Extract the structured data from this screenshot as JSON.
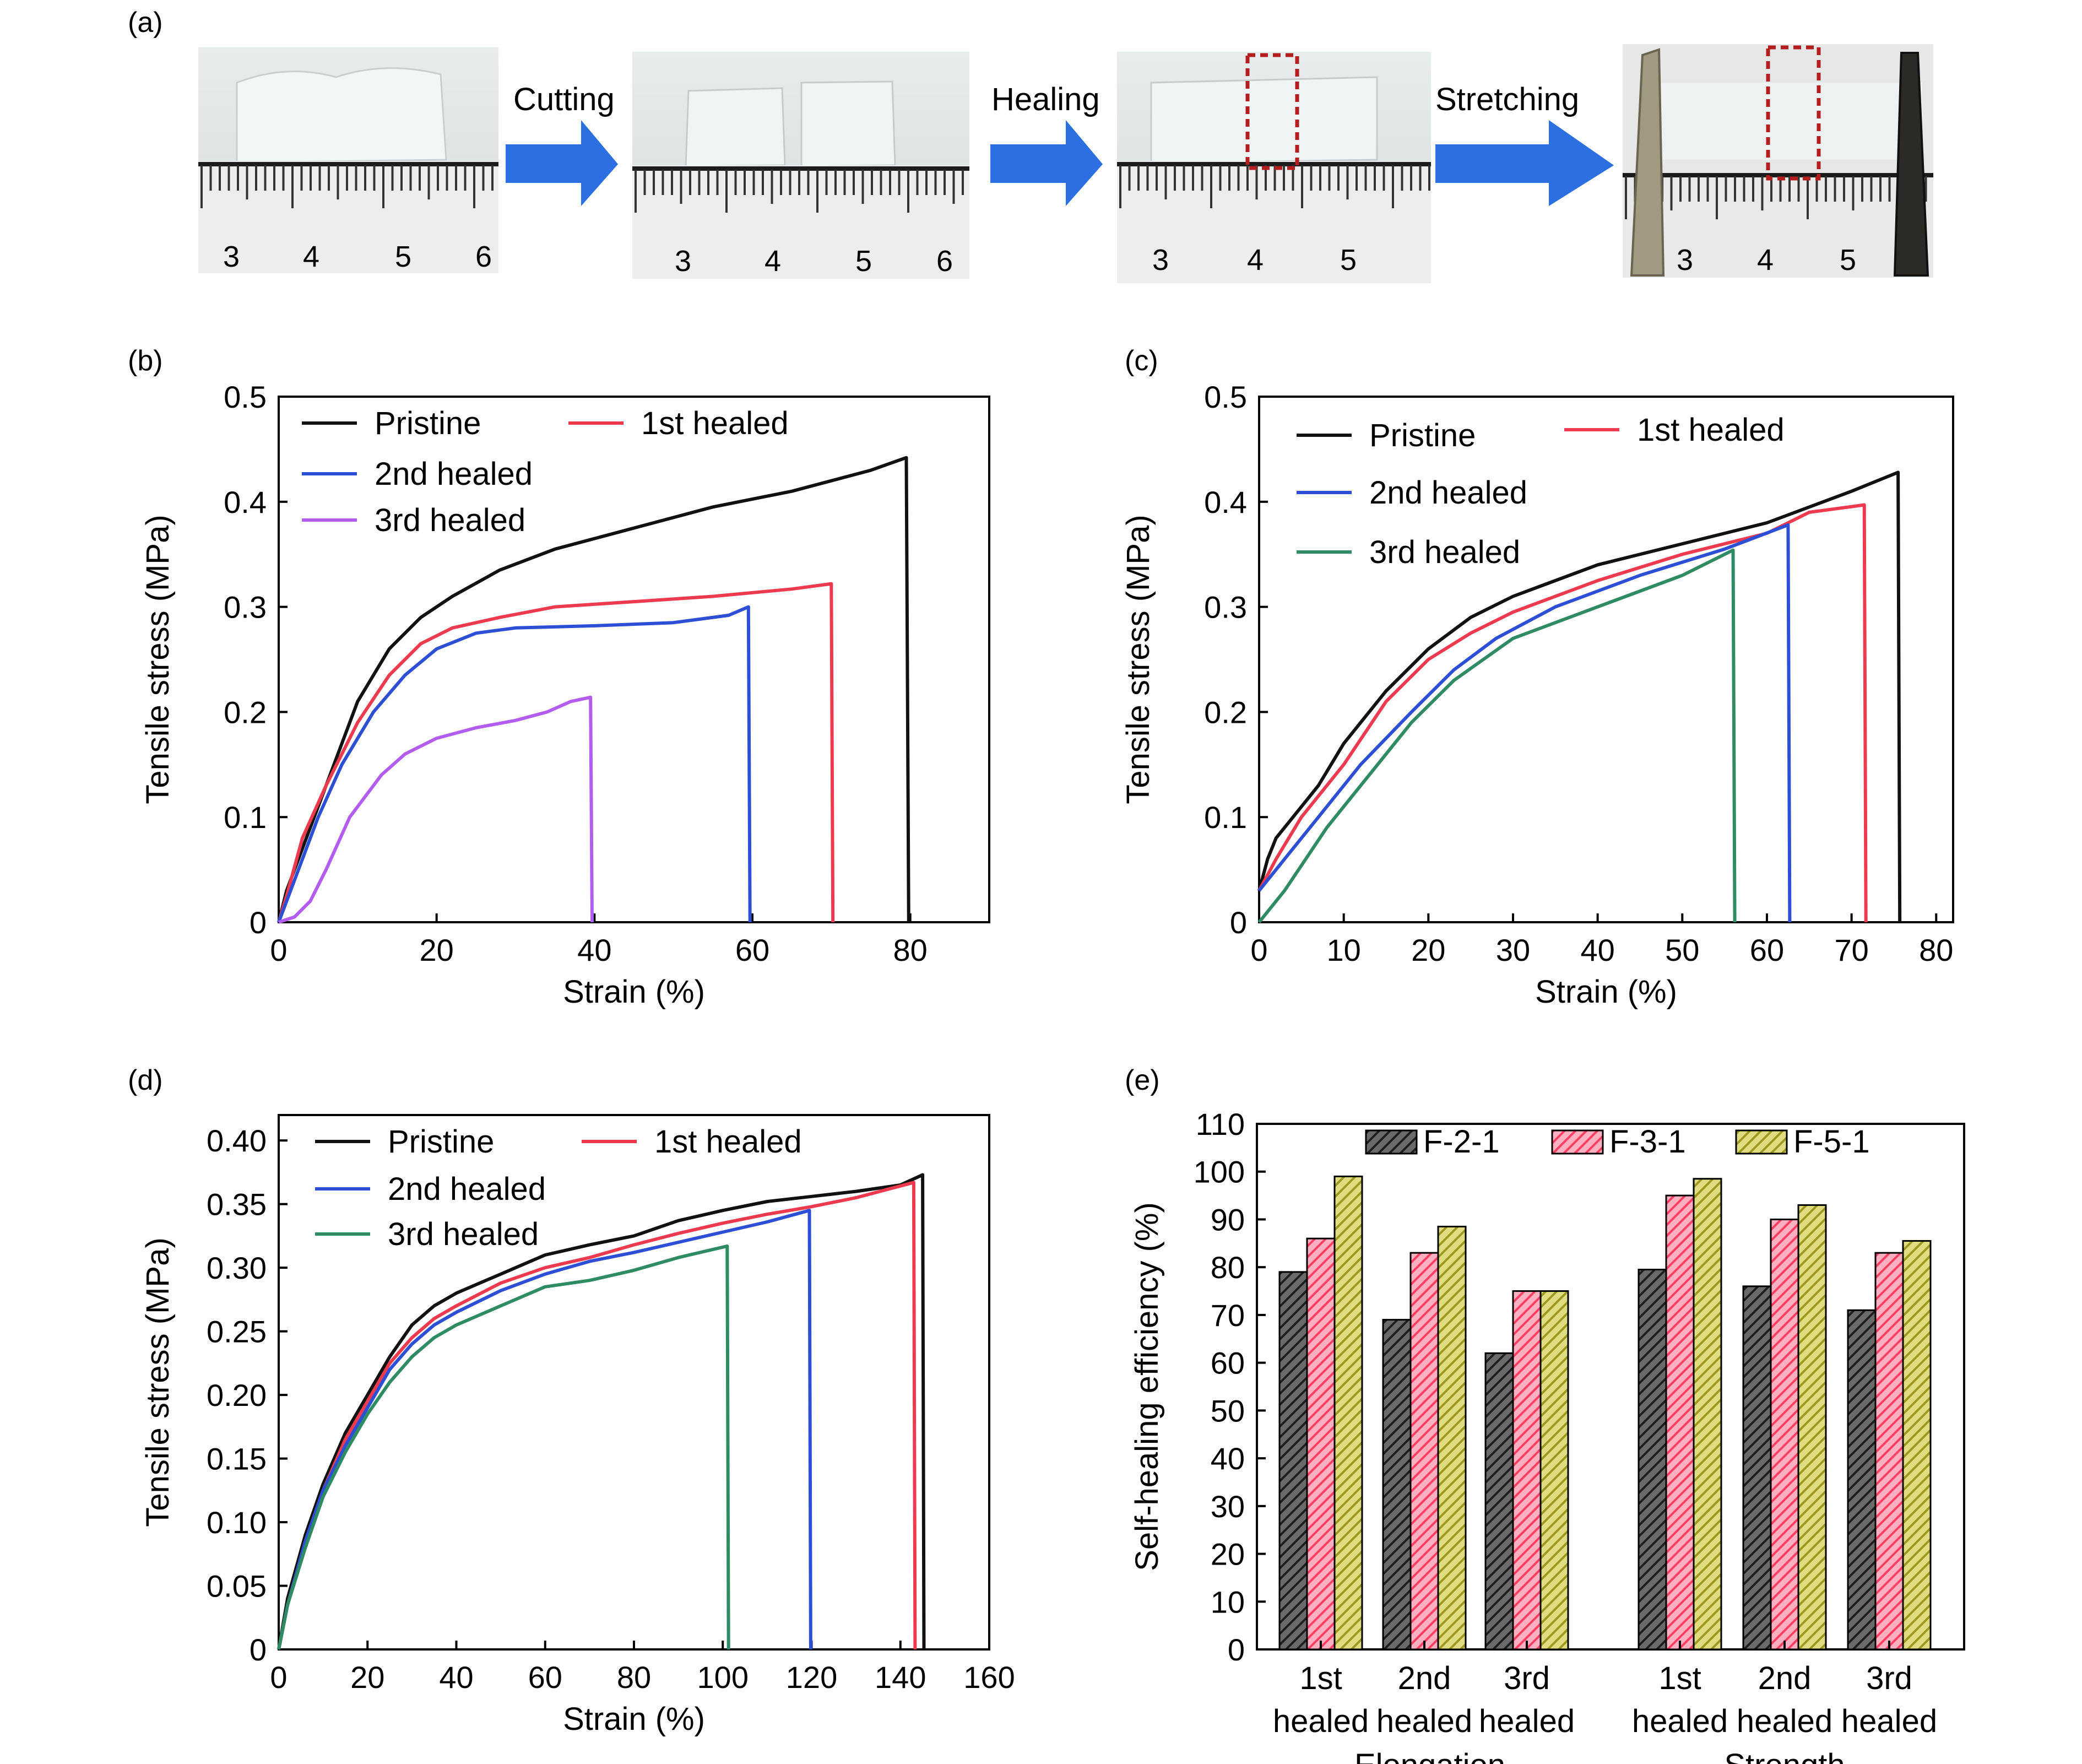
{
  "panel_labels": [
    "(a)",
    "(b)",
    "(c)",
    "(d)",
    "(e)"
  ],
  "photos": {
    "steps": [
      "Cutting",
      "Healing",
      "Stretching"
    ],
    "ruler_numbers": [
      [
        "3",
        "4",
        "5",
        "6"
      ],
      [
        "3",
        "4",
        "5",
        "6"
      ],
      [
        "3",
        "4",
        "5"
      ],
      [
        "3",
        "4",
        "5"
      ]
    ]
  },
  "colors": {
    "pristine": "#111111",
    "first": "#ee3a4f",
    "second": "#2c4fd6",
    "third_b": "#b25cf0",
    "third_cd": "#2e8b63",
    "arrow": "#2b6fe0",
    "box": "#b41e1e",
    "F21": "#3c3c3c",
    "F31": "#ff5a7a",
    "F51": "#b4b032"
  },
  "chart_data": [
    {
      "panel": "(b)",
      "type": "line",
      "xlabel": "Strain (%)",
      "ylabel": "Tensile stress (MPa)",
      "xlim": [
        0,
        90
      ],
      "ylim": [
        0,
        0.5
      ],
      "xticks": [
        "0",
        "20",
        "40",
        "60",
        "80"
      ],
      "yticks": [
        "0",
        "0.1",
        "0.2",
        "0.3",
        "0.4",
        "0.5"
      ],
      "series": [
        {
          "name": "Pristine",
          "color_key": "pristine",
          "points": [
            [
              0,
              0
            ],
            [
              1,
              0.03
            ],
            [
              3,
              0.07
            ],
            [
              6,
              0.13
            ],
            [
              10,
              0.21
            ],
            [
              14,
              0.26
            ],
            [
              18,
              0.29
            ],
            [
              22,
              0.31
            ],
            [
              28,
              0.335
            ],
            [
              35,
              0.355
            ],
            [
              45,
              0.375
            ],
            [
              55,
              0.395
            ],
            [
              65,
              0.41
            ],
            [
              75,
              0.43
            ],
            [
              79.5,
              0.442
            ],
            [
              79.5,
              0.44
            ],
            [
              79.8,
              0
            ]
          ]
        },
        {
          "name": "1st healed",
          "color_key": "first",
          "points": [
            [
              0,
              0
            ],
            [
              1,
              0.025
            ],
            [
              3,
              0.08
            ],
            [
              6,
              0.13
            ],
            [
              10,
              0.19
            ],
            [
              14,
              0.235
            ],
            [
              18,
              0.265
            ],
            [
              22,
              0.28
            ],
            [
              28,
              0.29
            ],
            [
              35,
              0.3
            ],
            [
              45,
              0.305
            ],
            [
              55,
              0.31
            ],
            [
              65,
              0.317
            ],
            [
              70,
              0.322
            ],
            [
              70,
              0.322
            ],
            [
              70.2,
              0
            ]
          ]
        },
        {
          "name": "2nd healed",
          "color_key": "second",
          "points": [
            [
              0,
              0
            ],
            [
              2,
              0.04
            ],
            [
              5,
              0.1
            ],
            [
              8,
              0.15
            ],
            [
              12,
              0.2
            ],
            [
              16,
              0.235
            ],
            [
              20,
              0.26
            ],
            [
              25,
              0.275
            ],
            [
              30,
              0.28
            ],
            [
              40,
              0.282
            ],
            [
              50,
              0.285
            ],
            [
              57,
              0.292
            ],
            [
              59.5,
              0.3
            ],
            [
              59.5,
              0.3
            ],
            [
              59.7,
              0
            ]
          ]
        },
        {
          "name": "3rd healed",
          "color_key": "third_b",
          "points": [
            [
              0,
              0
            ],
            [
              2,
              0.005
            ],
            [
              4,
              0.02
            ],
            [
              6,
              0.05
            ],
            [
              9,
              0.1
            ],
            [
              13,
              0.14
            ],
            [
              16,
              0.16
            ],
            [
              20,
              0.175
            ],
            [
              25,
              0.185
            ],
            [
              30,
              0.192
            ],
            [
              34,
              0.2
            ],
            [
              37,
              0.21
            ],
            [
              39.5,
              0.214
            ],
            [
              39.5,
              0.214
            ],
            [
              39.7,
              0
            ]
          ]
        }
      ]
    },
    {
      "panel": "(c)",
      "type": "line",
      "xlabel": "Strain (%)",
      "ylabel": "Tensile stress (MPa)",
      "xlim": [
        0,
        82
      ],
      "ylim": [
        0,
        0.5
      ],
      "xticks": [
        "0",
        "10",
        "20",
        "30",
        "40",
        "50",
        "60",
        "70",
        "80"
      ],
      "yticks": [
        "0",
        "0.1",
        "0.2",
        "0.3",
        "0.4",
        "0.5"
      ],
      "series": [
        {
          "name": "Pristine",
          "color_key": "pristine",
          "points": [
            [
              0,
              0.03
            ],
            [
              1,
              0.06
            ],
            [
              2,
              0.08
            ],
            [
              4,
              0.1
            ],
            [
              7,
              0.13
            ],
            [
              10,
              0.17
            ],
            [
              15,
              0.22
            ],
            [
              20,
              0.26
            ],
            [
              25,
              0.29
            ],
            [
              30,
              0.31
            ],
            [
              40,
              0.34
            ],
            [
              50,
              0.36
            ],
            [
              60,
              0.38
            ],
            [
              70,
              0.41
            ],
            [
              75.5,
              0.428
            ],
            [
              75.5,
              0.428
            ],
            [
              75.7,
              0
            ]
          ]
        },
        {
          "name": "1st healed",
          "color_key": "first",
          "points": [
            [
              0,
              0.03
            ],
            [
              2,
              0.06
            ],
            [
              5,
              0.1
            ],
            [
              10,
              0.15
            ],
            [
              15,
              0.21
            ],
            [
              20,
              0.25
            ],
            [
              25,
              0.275
            ],
            [
              30,
              0.295
            ],
            [
              40,
              0.325
            ],
            [
              50,
              0.35
            ],
            [
              60,
              0.37
            ],
            [
              65,
              0.39
            ],
            [
              71.5,
              0.397
            ],
            [
              71.5,
              0.397
            ],
            [
              71.7,
              0
            ]
          ]
        },
        {
          "name": "2nd healed",
          "color_key": "second",
          "points": [
            [
              0,
              0.03
            ],
            [
              3,
              0.06
            ],
            [
              7,
              0.1
            ],
            [
              12,
              0.15
            ],
            [
              18,
              0.2
            ],
            [
              23,
              0.24
            ],
            [
              28,
              0.27
            ],
            [
              35,
              0.3
            ],
            [
              45,
              0.33
            ],
            [
              55,
              0.355
            ],
            [
              62.5,
              0.378
            ],
            [
              62.5,
              0.378
            ],
            [
              62.7,
              0
            ]
          ]
        },
        {
          "name": "3rd healed",
          "color_key": "third_cd",
          "points": [
            [
              0,
              0
            ],
            [
              3,
              0.03
            ],
            [
              8,
              0.09
            ],
            [
              13,
              0.14
            ],
            [
              18,
              0.19
            ],
            [
              23,
              0.23
            ],
            [
              30,
              0.27
            ],
            [
              40,
              0.3
            ],
            [
              50,
              0.33
            ],
            [
              56,
              0.354
            ],
            [
              56,
              0.354
            ],
            [
              56.2,
              0
            ]
          ]
        }
      ]
    },
    {
      "panel": "(d)",
      "type": "line",
      "xlabel": "Strain (%)",
      "ylabel": "Tensile stress (MPa)",
      "xlim": [
        0,
        160
      ],
      "ylim": [
        0,
        0.42
      ],
      "xticks": [
        "0",
        "20",
        "40",
        "60",
        "80",
        "100",
        "120",
        "140",
        "160"
      ],
      "yticks": [
        "0",
        "0.05",
        "0.10",
        "0.15",
        "0.20",
        "0.25",
        "0.30",
        "0.35",
        "0.40"
      ],
      "series": [
        {
          "name": "Pristine",
          "color_key": "pristine",
          "points": [
            [
              0,
              0
            ],
            [
              2,
              0.04
            ],
            [
              6,
              0.09
            ],
            [
              10,
              0.13
            ],
            [
              15,
              0.17
            ],
            [
              20,
              0.2
            ],
            [
              25,
              0.23
            ],
            [
              30,
              0.255
            ],
            [
              35,
              0.27
            ],
            [
              40,
              0.28
            ],
            [
              50,
              0.295
            ],
            [
              60,
              0.31
            ],
            [
              70,
              0.318
            ],
            [
              80,
              0.325
            ],
            [
              90,
              0.337
            ],
            [
              100,
              0.345
            ],
            [
              110,
              0.352
            ],
            [
              120,
              0.356
            ],
            [
              130,
              0.36
            ],
            [
              140,
              0.365
            ],
            [
              145,
              0.373
            ],
            [
              145,
              0.373
            ],
            [
              145.3,
              0
            ]
          ]
        },
        {
          "name": "1st healed",
          "color_key": "first",
          "points": [
            [
              0,
              0
            ],
            [
              2,
              0.035
            ],
            [
              6,
              0.085
            ],
            [
              10,
              0.125
            ],
            [
              15,
              0.165
            ],
            [
              20,
              0.195
            ],
            [
              25,
              0.225
            ],
            [
              30,
              0.245
            ],
            [
              35,
              0.26
            ],
            [
              40,
              0.27
            ],
            [
              50,
              0.288
            ],
            [
              60,
              0.3
            ],
            [
              70,
              0.308
            ],
            [
              80,
              0.318
            ],
            [
              90,
              0.327
            ],
            [
              100,
              0.335
            ],
            [
              110,
              0.342
            ],
            [
              120,
              0.348
            ],
            [
              130,
              0.355
            ],
            [
              143,
              0.367
            ],
            [
              143,
              0.367
            ],
            [
              143.3,
              0
            ]
          ]
        },
        {
          "name": "2nd healed",
          "color_key": "second",
          "points": [
            [
              0,
              0
            ],
            [
              2,
              0.035
            ],
            [
              6,
              0.085
            ],
            [
              10,
              0.125
            ],
            [
              15,
              0.16
            ],
            [
              20,
              0.19
            ],
            [
              25,
              0.22
            ],
            [
              30,
              0.24
            ],
            [
              35,
              0.255
            ],
            [
              40,
              0.265
            ],
            [
              50,
              0.282
            ],
            [
              60,
              0.295
            ],
            [
              70,
              0.305
            ],
            [
              80,
              0.312
            ],
            [
              90,
              0.32
            ],
            [
              100,
              0.328
            ],
            [
              110,
              0.336
            ],
            [
              119.5,
              0.345
            ],
            [
              119.5,
              0.345
            ],
            [
              119.8,
              0
            ]
          ]
        },
        {
          "name": "3rd healed",
          "color_key": "third_cd",
          "points": [
            [
              0,
              0
            ],
            [
              2,
              0.035
            ],
            [
              6,
              0.08
            ],
            [
              10,
              0.12
            ],
            [
              15,
              0.155
            ],
            [
              20,
              0.185
            ],
            [
              25,
              0.21
            ],
            [
              30,
              0.23
            ],
            [
              35,
              0.245
            ],
            [
              40,
              0.255
            ],
            [
              50,
              0.27
            ],
            [
              60,
              0.285
            ],
            [
              70,
              0.29
            ],
            [
              80,
              0.298
            ],
            [
              90,
              0.308
            ],
            [
              101,
              0.317
            ],
            [
              101,
              0.317
            ],
            [
              101.3,
              0
            ]
          ]
        }
      ]
    },
    {
      "panel": "(e)",
      "type": "bar",
      "ylabel": "Self-healing efficiency (%)",
      "ylim": [
        0,
        110
      ],
      "yticks": [
        "0",
        "10",
        "20",
        "30",
        "40",
        "50",
        "60",
        "70",
        "80",
        "90",
        "100",
        "110"
      ],
      "categories": [
        [
          "1st",
          "healed"
        ],
        [
          "2nd",
          "healed"
        ],
        [
          "3rd",
          "healed"
        ],
        [
          "1st",
          "healed"
        ],
        [
          "2nd",
          "healed"
        ],
        [
          "3rd",
          "healed"
        ]
      ],
      "groups": [
        "Elongation",
        "Strength"
      ],
      "series": [
        {
          "name": "F-2-1",
          "color_key": "F21",
          "values": [
            79,
            69,
            62,
            79.5,
            76,
            71
          ]
        },
        {
          "name": "F-3-1",
          "color_key": "F31",
          "values": [
            86,
            83,
            75,
            95,
            90,
            83
          ]
        },
        {
          "name": "F-5-1",
          "color_key": "F51",
          "values": [
            99,
            88.5,
            75,
            98.5,
            93,
            85.5
          ]
        }
      ]
    }
  ]
}
